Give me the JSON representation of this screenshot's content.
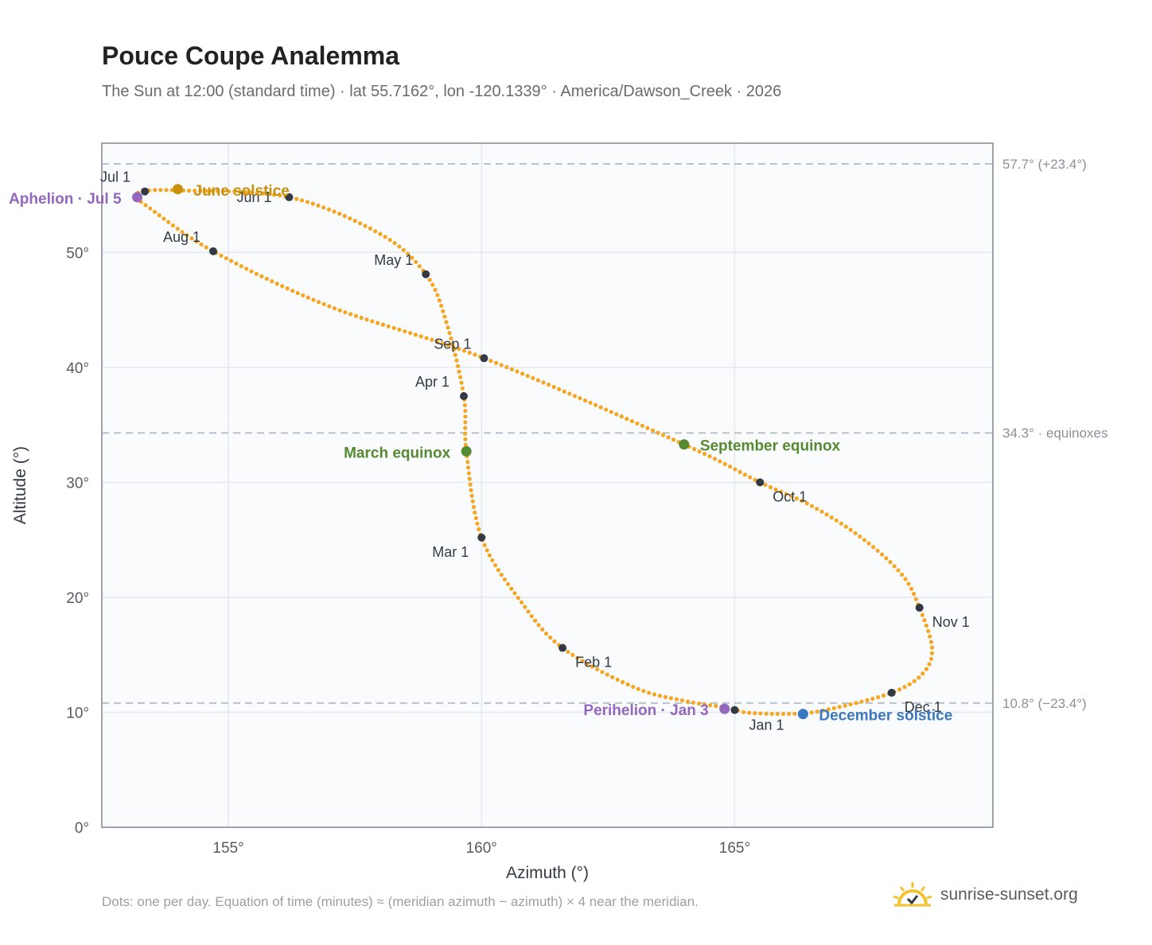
{
  "title": "Pouce Coupe Analemma",
  "subtitle": "The Sun at 12:00 (standard time) · lat 55.7162°, lon -120.1339° · America/Dawson_Creek · 2026",
  "footnote": "Dots: one per day. Equation of time (minutes) ≈ (meridian azimuth − azimuth) × 4 near the meridian.",
  "brand": {
    "text": "sunrise-sunset.org",
    "icon": "sun-logo-icon"
  },
  "colors": {
    "curve": "#f5a623",
    "month_dot": "#333a44",
    "june_solstice": "#c8900f",
    "december_solstice": "#3a78bf",
    "equinox": "#558a30",
    "apsis": "#9467bd",
    "reference_line": "#b8c2ce",
    "plot_background": "#f9fbfd",
    "grid": "#e4e9ef"
  },
  "chart_data": {
    "type": "scatter",
    "xlabel": "Azimuth (°)",
    "ylabel": "Altitude (°)",
    "xlim": [
      152.5,
      170.1
    ],
    "ylim": [
      0,
      59.5
    ],
    "xticks": [
      155,
      160,
      165
    ],
    "yticks": [
      0,
      10,
      20,
      30,
      40,
      50
    ],
    "tick_suffix": "°",
    "grid": true,
    "series": [
      {
        "marker": "dot-per-day",
        "points": [
          [
            164.85,
            10.4
          ],
          [
            164.0,
            11.0
          ],
          [
            163.0,
            12.2
          ],
          [
            161.6,
            15.6
          ],
          [
            160.8,
            19.5
          ],
          [
            160.0,
            25.2
          ],
          [
            159.7,
            32.7
          ],
          [
            159.65,
            37.5
          ],
          [
            159.3,
            44.0
          ],
          [
            158.9,
            48.1
          ],
          [
            158.0,
            51.6
          ],
          [
            156.2,
            54.8
          ],
          [
            154.0,
            55.4
          ],
          [
            153.3,
            55.3
          ],
          [
            153.2,
            54.8
          ],
          [
            153.4,
            54.0
          ],
          [
            154.7,
            50.1
          ],
          [
            157.0,
            45.3
          ],
          [
            160.05,
            40.8
          ],
          [
            164.0,
            33.3
          ],
          [
            165.5,
            30.0
          ],
          [
            166.5,
            28.0
          ],
          [
            167.5,
            25.2
          ],
          [
            168.3,
            22.0
          ],
          [
            168.65,
            19.1
          ],
          [
            168.9,
            15.5
          ],
          [
            168.7,
            13.3
          ],
          [
            168.1,
            11.7
          ],
          [
            167.0,
            10.4
          ],
          [
            166.3,
            9.9
          ],
          [
            165.3,
            9.95
          ],
          [
            164.85,
            10.4
          ]
        ]
      }
    ],
    "month_markers": [
      {
        "label": "Jan 1",
        "az": 165.0,
        "alt": 10.2
      },
      {
        "label": "Feb 1",
        "az": 161.6,
        "alt": 15.6
      },
      {
        "label": "Mar 1",
        "az": 160.0,
        "alt": 25.2
      },
      {
        "label": "Apr 1",
        "az": 159.65,
        "alt": 37.5
      },
      {
        "label": "May 1",
        "az": 158.9,
        "alt": 48.1
      },
      {
        "label": "Jun 1",
        "az": 156.2,
        "alt": 54.8
      },
      {
        "label": "Jul 1",
        "az": 153.35,
        "alt": 55.3
      },
      {
        "label": "Aug 1",
        "az": 154.7,
        "alt": 50.1
      },
      {
        "label": "Sep 1",
        "az": 160.05,
        "alt": 40.8
      },
      {
        "label": "Oct 1",
        "az": 165.5,
        "alt": 30.0
      },
      {
        "label": "Nov 1",
        "az": 168.65,
        "alt": 19.1
      },
      {
        "label": "Dec 1",
        "az": 168.1,
        "alt": 11.7
      }
    ],
    "events": [
      {
        "label": "June solstice",
        "az": 154.0,
        "alt": 55.5,
        "color": "#c8900f"
      },
      {
        "label": "December solstice",
        "az": 166.35,
        "alt": 9.85,
        "color": "#3a78bf"
      },
      {
        "label": "March equinox",
        "az": 159.7,
        "alt": 32.7,
        "color": "#558a30"
      },
      {
        "label": "September equinox",
        "az": 164.0,
        "alt": 33.3,
        "color": "#558a30"
      },
      {
        "label": "Aphelion · Jul 5",
        "az": 153.2,
        "alt": 54.8,
        "color": "#9467bd"
      },
      {
        "label": "Perihelion · Jan 3",
        "az": 164.8,
        "alt": 10.3,
        "color": "#9467bd"
      }
    ],
    "reference_lines": [
      {
        "alt": 57.7,
        "label": "57.7° (+23.4°)"
      },
      {
        "alt": 34.3,
        "label": "34.3° · equinoxes"
      },
      {
        "alt": 10.8,
        "label": "10.8° (−23.4°)"
      }
    ]
  }
}
